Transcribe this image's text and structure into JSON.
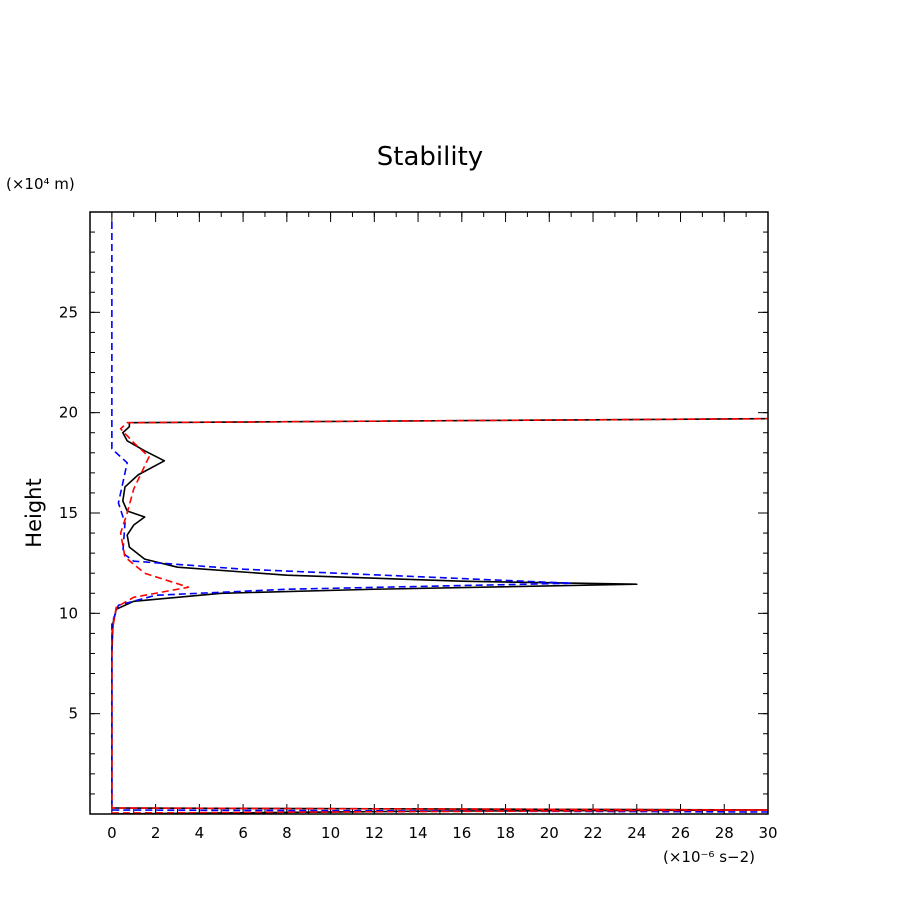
{
  "chart_data": {
    "type": "line",
    "title": "Stability",
    "xlabel": "",
    "ylabel": "Height",
    "x_unit_label": "(×10⁻⁶ s−2)",
    "y_unit_label": "(×10⁴ m)",
    "xlim": [
      -1,
      30
    ],
    "ylim": [
      0,
      30
    ],
    "x_ticks": [
      0,
      2,
      4,
      6,
      8,
      10,
      12,
      14,
      16,
      18,
      20,
      22,
      24,
      26,
      28,
      30
    ],
    "y_ticks": [
      5,
      10,
      15,
      20,
      25
    ],
    "grid": false,
    "legend": "none",
    "series": [
      {
        "color": "#000000",
        "dash": "solid",
        "points": [
          [
            0.0,
            0.0
          ],
          [
            15,
            0.15
          ],
          [
            30,
            0.2
          ],
          [
            0.0,
            0.3
          ],
          [
            0.0,
            5.0
          ],
          [
            0.0,
            8.0
          ],
          [
            0.05,
            9.5
          ],
          [
            0.2,
            10.2
          ],
          [
            1.0,
            10.6
          ],
          [
            5.0,
            11.0
          ],
          [
            12.0,
            11.2
          ],
          [
            24.0,
            11.45
          ],
          [
            16.0,
            11.6
          ],
          [
            8.0,
            11.9
          ],
          [
            3.0,
            12.3
          ],
          [
            1.5,
            12.7
          ],
          [
            0.8,
            13.3
          ],
          [
            0.7,
            13.9
          ],
          [
            1.0,
            14.4
          ],
          [
            1.5,
            14.8
          ],
          [
            0.7,
            15.1
          ],
          [
            0.5,
            15.6
          ],
          [
            0.6,
            16.3
          ],
          [
            1.2,
            16.9
          ],
          [
            2.4,
            17.6
          ],
          [
            1.5,
            18.1
          ],
          [
            0.7,
            18.6
          ],
          [
            0.5,
            19.0
          ],
          [
            0.8,
            19.3
          ],
          [
            0.8,
            19.5
          ],
          [
            30,
            19.7
          ]
        ]
      },
      {
        "color": "#0000ff",
        "dash": "dashed",
        "points": [
          [
            0.0,
            29.5
          ],
          [
            0.0,
            25.0
          ],
          [
            0.0,
            20.0
          ],
          [
            0.0,
            18.2
          ],
          [
            0.7,
            17.5
          ],
          [
            0.5,
            16.5
          ],
          [
            0.3,
            15.5
          ],
          [
            0.6,
            14.5
          ],
          [
            0.5,
            13.0
          ],
          [
            1.0,
            12.6
          ],
          [
            6.0,
            12.2
          ],
          [
            21.0,
            11.5
          ],
          [
            8.0,
            11.2
          ],
          [
            2.0,
            10.9
          ],
          [
            0.3,
            10.4
          ],
          [
            0.0,
            9.5
          ],
          [
            0.0,
            5.0
          ],
          [
            0.0,
            1.0
          ],
          [
            0.0,
            0.2
          ],
          [
            30,
            0.1
          ]
        ]
      },
      {
        "color": "#ff0000",
        "dash": "dashed",
        "points": [
          [
            0.0,
            0.05
          ],
          [
            30,
            0.2
          ],
          [
            0.0,
            0.3
          ],
          [
            0.0,
            5.0
          ],
          [
            0.0,
            9.0
          ],
          [
            0.2,
            10.3
          ],
          [
            1.0,
            10.8
          ],
          [
            3.5,
            11.3
          ],
          [
            1.5,
            12.0
          ],
          [
            0.6,
            12.8
          ],
          [
            0.4,
            14.0
          ],
          [
            0.7,
            15.0
          ],
          [
            1.0,
            16.2
          ],
          [
            1.7,
            17.8
          ],
          [
            1.0,
            18.5
          ],
          [
            0.4,
            19.2
          ],
          [
            0.7,
            19.5
          ],
          [
            30,
            19.7
          ]
        ]
      }
    ]
  }
}
